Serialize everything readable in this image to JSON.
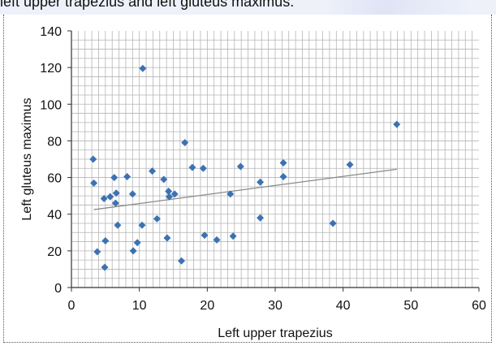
{
  "caption": "left upper trapezius and left gluteus maximus.",
  "chart_data": {
    "type": "scatter",
    "xlabel": "Left upper trapezius",
    "ylabel": "Left  gluteus maximus",
    "xlim": [
      0,
      60
    ],
    "ylim": [
      0,
      140
    ],
    "xticks": [
      0,
      10,
      20,
      30,
      40,
      50,
      60
    ],
    "yticks": [
      0,
      20,
      40,
      60,
      80,
      100,
      120,
      140
    ],
    "grid": true,
    "marker_color": "#3d72b2",
    "trendline_color": "#8a8a8a",
    "points": [
      {
        "x": 3.2,
        "y": 70
      },
      {
        "x": 3.3,
        "y": 57
      },
      {
        "x": 3.8,
        "y": 19.5
      },
      {
        "x": 4.8,
        "y": 48.5
      },
      {
        "x": 5.0,
        "y": 25.5
      },
      {
        "x": 4.9,
        "y": 11
      },
      {
        "x": 5.7,
        "y": 49.5
      },
      {
        "x": 6.3,
        "y": 60
      },
      {
        "x": 6.6,
        "y": 51.5
      },
      {
        "x": 6.5,
        "y": 46
      },
      {
        "x": 6.8,
        "y": 34
      },
      {
        "x": 8.2,
        "y": 60.5
      },
      {
        "x": 9.0,
        "y": 51
      },
      {
        "x": 9.1,
        "y": 20
      },
      {
        "x": 9.7,
        "y": 24.5
      },
      {
        "x": 10.5,
        "y": 119.5
      },
      {
        "x": 10.4,
        "y": 34
      },
      {
        "x": 11.9,
        "y": 63.5
      },
      {
        "x": 12.6,
        "y": 37.5
      },
      {
        "x": 13.6,
        "y": 59
      },
      {
        "x": 14.1,
        "y": 27
      },
      {
        "x": 14.3,
        "y": 52.5
      },
      {
        "x": 14.4,
        "y": 49.5
      },
      {
        "x": 15.2,
        "y": 51
      },
      {
        "x": 16.2,
        "y": 14.5
      },
      {
        "x": 16.7,
        "y": 79
      },
      {
        "x": 17.8,
        "y": 65.5
      },
      {
        "x": 19.4,
        "y": 65
      },
      {
        "x": 19.6,
        "y": 28.5
      },
      {
        "x": 21.4,
        "y": 26
      },
      {
        "x": 23.4,
        "y": 51
      },
      {
        "x": 23.8,
        "y": 28
      },
      {
        "x": 24.9,
        "y": 66
      },
      {
        "x": 27.8,
        "y": 57.5
      },
      {
        "x": 27.8,
        "y": 38
      },
      {
        "x": 31.2,
        "y": 68
      },
      {
        "x": 31.2,
        "y": 60.5
      },
      {
        "x": 38.5,
        "y": 35
      },
      {
        "x": 41.0,
        "y": 67
      },
      {
        "x": 47.9,
        "y": 89
      }
    ],
    "trendline": {
      "x": [
        3.3,
        47.9
      ],
      "y": [
        42.5,
        64.5
      ]
    }
  }
}
